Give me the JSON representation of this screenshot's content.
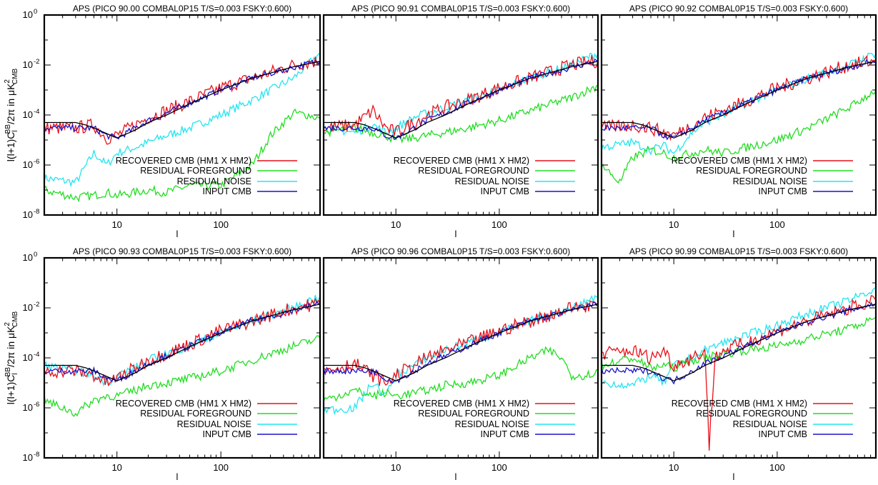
{
  "ylabel_parts": {
    "prefix": "l(l+1)C",
    "sub": "l",
    "sup": "BB",
    "mid": "/2π in μK",
    "unit_sup": "2",
    "unit_sub": "CMB"
  },
  "xlabel": "l",
  "x_ticks": [
    "10",
    "100"
  ],
  "y_ticks": [
    "10",
    "10",
    "10",
    "10",
    "10"
  ],
  "y_tick_exponents": [
    "0",
    "-2",
    "-4",
    "-6",
    "-8"
  ],
  "legend": {
    "recovered": "RECOVERED CMB (HM1 X HM2)",
    "foreground": "RESIDUAL FOREGROUND",
    "noise": "RESIDUAL NOISE",
    "input": "INPUT CMB"
  },
  "colors": {
    "recovered": "#e8101a",
    "foreground": "#22dd22",
    "noise": "#22e5f0",
    "input": "#1a12c8",
    "theory": "#000000"
  },
  "chart_data": [
    {
      "type": "line",
      "title": "APS (PICO 90.00 COMBAL0P15 T/S=0.003 FSKY:0.600)",
      "xlabel": "l",
      "x_scale": "log",
      "y_scale": "log",
      "xlim": [
        2,
        900
      ],
      "ylim": [
        1e-08,
        1
      ],
      "grid": false,
      "legend_position": "bottom-right",
      "series": [
        {
          "name": "RECOVERED CMB (HM1 X HM2)",
          "x": [
            2,
            4,
            6,
            8,
            10,
            15,
            20,
            30,
            50,
            100,
            200,
            500,
            900
          ],
          "y": [
            3e-05,
            3e-05,
            4e-05,
            1.2e-05,
            1.5e-05,
            4e-05,
            8e-05,
            0.00015,
            0.00035,
            0.0012,
            0.003,
            0.01,
            0.015
          ]
        },
        {
          "name": "RESIDUAL FOREGROUND",
          "x": [
            2,
            4,
            6,
            8,
            10,
            15,
            20,
            30,
            50,
            100,
            200,
            300,
            400,
            500,
            700,
            900
          ],
          "y": [
            1e-07,
            5e-08,
            6e-08,
            8e-08,
            6e-08,
            8e-08,
            1e-07,
            8e-08,
            1.5e-07,
            1.5e-07,
            1e-06,
            1.5e-05,
            5e-05,
            0.00012,
            0.0001,
            7e-05
          ]
        },
        {
          "name": "RESIDUAL NOISE",
          "x": [
            2,
            4,
            6,
            8,
            10,
            15,
            20,
            30,
            50,
            100,
            200,
            500,
            900
          ],
          "y": [
            3e-07,
            2e-07,
            3e-06,
            1e-06,
            3e-06,
            5e-06,
            8e-06,
            1.5e-05,
            3e-05,
            0.0001,
            0.0004,
            0.003,
            0.03
          ]
        },
        {
          "name": "INPUT CMB",
          "x": [
            2,
            4,
            6,
            8,
            10,
            15,
            20,
            30,
            50,
            100,
            200,
            500,
            900
          ],
          "y": [
            3e-05,
            3e-05,
            3e-05,
            1.5e-05,
            1.2e-05,
            3e-05,
            6e-05,
            0.00012,
            0.0003,
            0.001,
            0.003,
            0.008,
            0.015
          ]
        }
      ]
    },
    {
      "type": "line",
      "title": "APS (PICO 90.91 COMBAL0P15 T/S=0.003 FSKY:0.600)",
      "xlabel": "l",
      "x_scale": "log",
      "y_scale": "log",
      "xlim": [
        2,
        900
      ],
      "ylim": [
        1e-08,
        1
      ],
      "grid": false,
      "legend_position": "bottom-right",
      "series": [
        {
          "name": "RECOVERED CMB (HM1 X HM2)",
          "x": [
            2,
            4,
            6,
            8,
            10,
            15,
            20,
            30,
            50,
            100,
            200,
            500,
            900
          ],
          "y": [
            3e-05,
            4e-05,
            0.00015,
            3e-05,
            2e-05,
            5e-05,
            0.0001,
            0.0002,
            0.0004,
            0.0012,
            0.003,
            0.01,
            0.015
          ]
        },
        {
          "name": "RESIDUAL FOREGROUND",
          "x": [
            2,
            4,
            6,
            8,
            10,
            15,
            20,
            30,
            50,
            100,
            200,
            500,
            900
          ],
          "y": [
            2e-05,
            3e-05,
            2e-05,
            1.5e-05,
            1e-05,
            1.2e-05,
            1.5e-05,
            2e-05,
            3e-05,
            6e-05,
            0.00015,
            0.0005,
            0.0015
          ]
        },
        {
          "name": "RESIDUAL NOISE",
          "x": [
            2,
            4,
            6,
            8,
            10,
            15,
            20,
            30,
            50,
            100,
            200,
            500,
            900
          ],
          "y": [
            3e-05,
            2e-05,
            4e-05,
            2e-05,
            3e-05,
            8e-05,
            0.00012,
            0.0002,
            0.0004,
            0.001,
            0.003,
            0.01,
            0.03
          ]
        },
        {
          "name": "INPUT CMB",
          "x": [
            2,
            4,
            6,
            8,
            10,
            15,
            20,
            30,
            50,
            100,
            200,
            500,
            900
          ],
          "y": [
            3e-05,
            3e-05,
            3e-05,
            1.5e-05,
            1.2e-05,
            3e-05,
            6e-05,
            0.00012,
            0.0003,
            0.001,
            0.003,
            0.008,
            0.015
          ]
        }
      ]
    },
    {
      "type": "line",
      "title": "APS (PICO 90.92 COMBAL0P15 T/S=0.003 FSKY:0.600)",
      "xlabel": "l",
      "x_scale": "log",
      "y_scale": "log",
      "xlim": [
        2,
        900
      ],
      "ylim": [
        1e-08,
        1
      ],
      "grid": false,
      "legend_position": "bottom-right",
      "series": [
        {
          "name": "RECOVERED CMB (HM1 X HM2)",
          "x": [
            2,
            4,
            6,
            8,
            10,
            15,
            20,
            30,
            50,
            100,
            200,
            500,
            900
          ],
          "y": [
            3e-05,
            4e-05,
            3e-05,
            2e-05,
            1.5e-05,
            4e-05,
            8e-05,
            0.00015,
            0.00035,
            0.0012,
            0.003,
            0.01,
            0.015
          ]
        },
        {
          "name": "RESIDUAL FOREGROUND",
          "x": [
            2,
            3,
            4,
            6,
            8,
            10,
            15,
            20,
            30,
            50,
            100,
            200,
            500,
            900
          ],
          "y": [
            1e-06,
            2e-07,
            2e-06,
            4e-06,
            3e-06,
            2e-06,
            3e-06,
            4e-06,
            3e-06,
            5e-06,
            1e-05,
            3e-05,
            0.0002,
            0.001
          ]
        },
        {
          "name": "RESIDUAL NOISE",
          "x": [
            2,
            4,
            6,
            8,
            10,
            15,
            20,
            30,
            50,
            100,
            200,
            500,
            900
          ],
          "y": [
            5e-06,
            8e-06,
            4e-06,
            6e-06,
            3e-06,
            2e-05,
            5e-05,
            0.0001,
            0.0003,
            0.001,
            0.003,
            0.01,
            0.03
          ]
        },
        {
          "name": "INPUT CMB",
          "x": [
            2,
            4,
            6,
            8,
            10,
            15,
            20,
            30,
            50,
            100,
            200,
            500,
            900
          ],
          "y": [
            3e-05,
            3e-05,
            3e-05,
            1.5e-05,
            1.2e-05,
            3e-05,
            6e-05,
            0.00012,
            0.0003,
            0.001,
            0.003,
            0.008,
            0.015
          ]
        }
      ]
    },
    {
      "type": "line",
      "title": "APS (PICO 90.93 COMBAL0P15 T/S=0.003 FSKY:0.600)",
      "xlabel": "l",
      "x_scale": "log",
      "y_scale": "log",
      "xlim": [
        2,
        900
      ],
      "ylim": [
        1e-08,
        1
      ],
      "grid": false,
      "legend_position": "bottom-right",
      "series": [
        {
          "name": "RECOVERED CMB (HM1 X HM2)",
          "x": [
            2,
            4,
            6,
            8,
            10,
            15,
            20,
            30,
            50,
            100,
            200,
            500,
            900
          ],
          "y": [
            3e-05,
            3e-05,
            2e-05,
            1e-05,
            1.5e-05,
            4e-05,
            8e-05,
            0.00015,
            0.00035,
            0.0012,
            0.003,
            0.01,
            0.015
          ]
        },
        {
          "name": "RESIDUAL FOREGROUND",
          "x": [
            2,
            3,
            4,
            6,
            8,
            10,
            15,
            20,
            30,
            50,
            100,
            200,
            500,
            900
          ],
          "y": [
            2e-06,
            1e-06,
            6e-07,
            2e-06,
            3e-06,
            3e-06,
            5e-06,
            8e-06,
            1e-05,
            1.5e-05,
            3e-05,
            8e-05,
            0.0003,
            0.0006
          ]
        },
        {
          "name": "RESIDUAL NOISE",
          "x": [
            2,
            4,
            6,
            8,
            10,
            15,
            20,
            30,
            50,
            100,
            200,
            500,
            900
          ],
          "y": [
            5e-05,
            3e-05,
            2e-05,
            1e-05,
            2e-05,
            4e-05,
            8e-05,
            0.00015,
            0.0003,
            0.001,
            0.003,
            0.01,
            0.03
          ]
        },
        {
          "name": "INPUT CMB",
          "x": [
            2,
            4,
            6,
            8,
            10,
            15,
            20,
            30,
            50,
            100,
            200,
            500,
            900
          ],
          "y": [
            3e-05,
            3e-05,
            3e-05,
            1.5e-05,
            1.2e-05,
            3e-05,
            6e-05,
            0.00012,
            0.0003,
            0.001,
            0.003,
            0.008,
            0.015
          ]
        }
      ]
    },
    {
      "type": "line",
      "title": "APS (PICO 90.96 COMBAL0P15 T/S=0.003 FSKY:0.600)",
      "xlabel": "l",
      "x_scale": "log",
      "y_scale": "log",
      "xlim": [
        2,
        900
      ],
      "ylim": [
        1e-08,
        1
      ],
      "grid": false,
      "legend_position": "bottom-right",
      "series": [
        {
          "name": "RECOVERED CMB (HM1 X HM2)",
          "x": [
            2,
            4,
            6,
            8,
            10,
            15,
            20,
            30,
            50,
            100,
            200,
            500,
            900
          ],
          "y": [
            3e-05,
            6e-05,
            2e-05,
            1e-05,
            2e-05,
            5e-05,
            0.0001,
            0.0002,
            0.0004,
            0.0012,
            0.003,
            0.01,
            0.015
          ]
        },
        {
          "name": "RESIDUAL FOREGROUND",
          "x": [
            2,
            4,
            6,
            8,
            10,
            15,
            20,
            30,
            50,
            100,
            200,
            300,
            400,
            500,
            700,
            900
          ],
          "y": [
            2e-06,
            5e-06,
            3e-06,
            4e-06,
            3e-06,
            4e-06,
            5e-06,
            8e-06,
            1e-05,
            2e-05,
            0.0001,
            0.0002,
            0.0001,
            2e-05,
            2e-05,
            3e-05
          ]
        },
        {
          "name": "RESIDUAL NOISE",
          "x": [
            2,
            4,
            6,
            8,
            10,
            15,
            20,
            30,
            50,
            100,
            200,
            500,
            900
          ],
          "y": [
            8e-07,
            1e-06,
            1e-05,
            3e-06,
            2e-05,
            5e-05,
            0.0001,
            0.0002,
            0.0004,
            0.001,
            0.003,
            0.01,
            0.03
          ]
        },
        {
          "name": "INPUT CMB",
          "x": [
            2,
            4,
            6,
            8,
            10,
            15,
            20,
            30,
            50,
            100,
            200,
            500,
            900
          ],
          "y": [
            3e-05,
            3e-05,
            3e-05,
            1.5e-05,
            1.2e-05,
            3e-05,
            6e-05,
            0.00012,
            0.0003,
            0.001,
            0.003,
            0.008,
            0.015
          ]
        }
      ]
    },
    {
      "type": "line",
      "title": "APS (PICO 90.99 COMBAL0P15 T/S=0.003 FSKY:0.600)",
      "xlabel": "l",
      "x_scale": "log",
      "y_scale": "log",
      "xlim": [
        2,
        900
      ],
      "ylim": [
        1e-08,
        1
      ],
      "grid": false,
      "legend_position": "bottom-right",
      "series": [
        {
          "name": "RECOVERED CMB (HM1 X HM2)",
          "x": [
            2,
            4,
            6,
            8,
            10,
            15,
            20,
            22,
            25,
            30,
            50,
            100,
            200,
            500,
            900
          ],
          "y": [
            0.00015,
            0.0002,
            0.0001,
            0.0002,
            5e-05,
            0.0001,
            0.0002,
            3e-08,
            0.0001,
            0.0002,
            0.0004,
            0.0012,
            0.003,
            0.01,
            0.02
          ]
        },
        {
          "name": "RESIDUAL FOREGROUND",
          "x": [
            2,
            4,
            6,
            8,
            10,
            15,
            20,
            30,
            50,
            100,
            200,
            500,
            900
          ],
          "y": [
            5e-05,
            0.0001,
            4e-05,
            5e-05,
            4e-05,
            8e-05,
            0.0001,
            0.00015,
            0.0002,
            0.0003,
            0.0006,
            0.0015,
            0.004
          ]
        },
        {
          "name": "RESIDUAL NOISE",
          "x": [
            2,
            4,
            6,
            8,
            10,
            15,
            20,
            30,
            50,
            100,
            200,
            500,
            900
          ],
          "y": [
            1e-05,
            8e-06,
            2e-05,
            1e-05,
            5e-05,
            0.0001,
            0.0002,
            0.0004,
            0.0008,
            0.002,
            0.006,
            0.02,
            0.06
          ]
        },
        {
          "name": "INPUT CMB",
          "x": [
            2,
            4,
            6,
            8,
            10,
            15,
            20,
            30,
            50,
            100,
            200,
            500,
            900
          ],
          "y": [
            3e-05,
            3e-05,
            3e-05,
            1.5e-05,
            1.2e-05,
            3e-05,
            6e-05,
            0.00012,
            0.0003,
            0.001,
            0.003,
            0.008,
            0.015
          ]
        }
      ]
    }
  ]
}
